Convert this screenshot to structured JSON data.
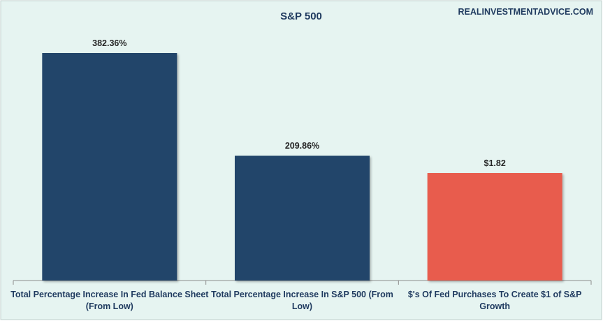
{
  "chart_data": {
    "type": "bar",
    "title": "S&P 500",
    "source": "REALINVESTMENTADVICE.COM",
    "categories": [
      [
        "Total Percentage Increase In Fed Balance Sheet",
        "(From Low)"
      ],
      [
        "Total Percentage Increase In S&P 500 (From",
        "Low)"
      ],
      [
        "$'s Of Fed Purchases To Create $1 of S&P",
        "Growth"
      ]
    ],
    "values": [
      382.36,
      209.86,
      1.82
    ],
    "data_labels": [
      "382.36%",
      "209.86%",
      "$1.82"
    ],
    "bar_colors": [
      "#22446b",
      "#22446b",
      "#e85b4d"
    ],
    "background": "#e6f4f1",
    "grid": false,
    "legend": "none"
  }
}
